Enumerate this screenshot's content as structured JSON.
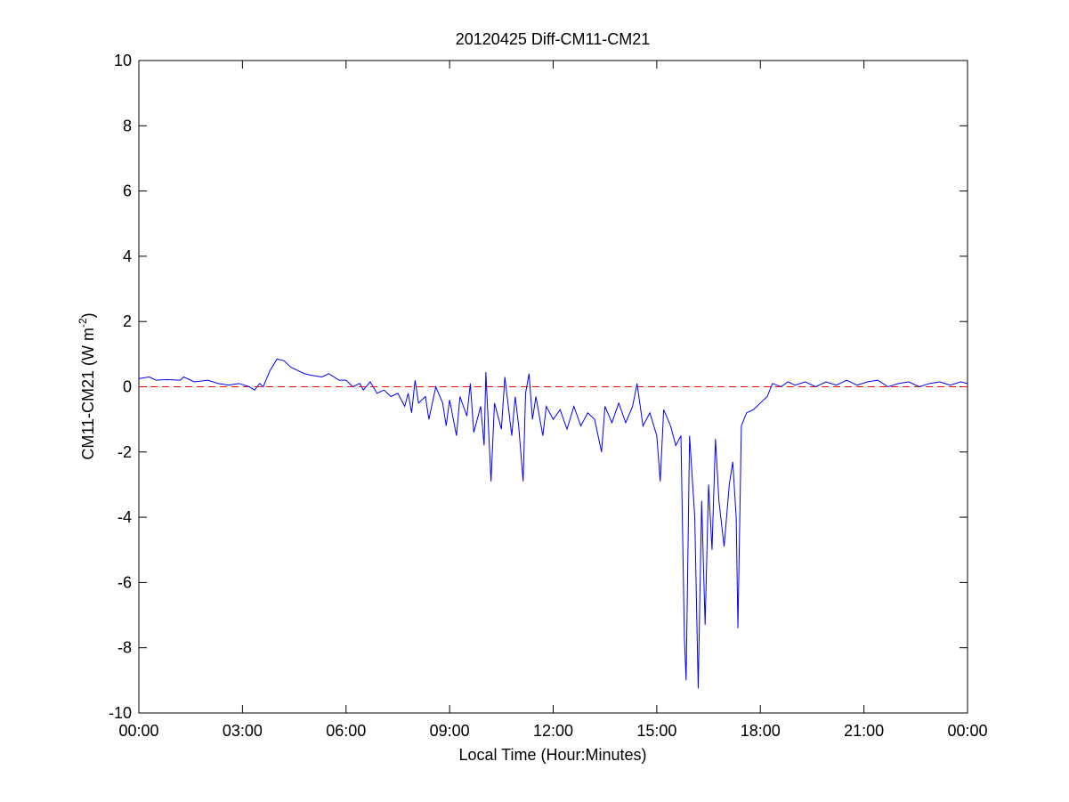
{
  "chart_data": {
    "type": "line",
    "title": "20120425 Diff-CM11-CM21",
    "xlabel": "Local Time (Hour:Minutes)",
    "ylabel": "CM11-CM21 (W m",
    "ylabel_sup": "-2",
    "ylabel_end": ")",
    "x": [
      0,
      0.3,
      0.5,
      0.8,
      1.2,
      1.3,
      1.6,
      2,
      2.3,
      2.6,
      2.9,
      3.2,
      3.35,
      3.5,
      3.6,
      3.8,
      4.0,
      4.2,
      4.4,
      4.6,
      4.8,
      5.0,
      5.3,
      5.5,
      5.8,
      6.0,
      6.2,
      6.4,
      6.5,
      6.7,
      6.9,
      7.1,
      7.3,
      7.5,
      7.7,
      7.8,
      7.9,
      8.0,
      8.1,
      8.3,
      8.4,
      8.6,
      8.8,
      8.9,
      9.0,
      9.2,
      9.3,
      9.5,
      9.6,
      9.7,
      9.9,
      10.0,
      10.05,
      10.2,
      10.3,
      10.5,
      10.6,
      10.8,
      10.9,
      11.0,
      11.13,
      11.2,
      11.3,
      11.4,
      11.5,
      11.7,
      11.8,
      12.0,
      12.2,
      12.4,
      12.6,
      12.8,
      13.0,
      13.2,
      13.4,
      13.5,
      13.7,
      13.9,
      14.1,
      14.3,
      14.43,
      14.6,
      14.8,
      15.0,
      15.1,
      15.2,
      15.4,
      15.55,
      15.7,
      15.8,
      15.85,
      15.95,
      16.1,
      16.2,
      16.3,
      16.4,
      16.5,
      16.6,
      16.7,
      16.8,
      16.95,
      17.1,
      17.2,
      17.3,
      17.35,
      17.45,
      17.6,
      17.8,
      18.0,
      18.2,
      18.35,
      18.6,
      18.8,
      19.0,
      19.3,
      19.6,
      19.9,
      20.2,
      20.5,
      20.8,
      21.1,
      21.4,
      21.7,
      22.0,
      22.3,
      22.6,
      22.9,
      23.2,
      23.5,
      23.8,
      24.0
    ],
    "series": [
      {
        "color": "#0000ff",
        "values": [
          0.25,
          0.3,
          0.2,
          0.22,
          0.2,
          0.3,
          0.15,
          0.2,
          0.1,
          0.05,
          0.1,
          0.0,
          -0.1,
          0.1,
          0.0,
          0.5,
          0.85,
          0.8,
          0.6,
          0.5,
          0.4,
          0.35,
          0.3,
          0.4,
          0.2,
          0.2,
          0.0,
          0.1,
          -0.1,
          0.15,
          -0.2,
          -0.1,
          -0.3,
          -0.2,
          -0.6,
          -0.2,
          -0.8,
          0.2,
          -0.5,
          -0.3,
          -1.0,
          0.0,
          -0.5,
          -1.2,
          -0.4,
          -1.5,
          -0.3,
          -0.9,
          0.1,
          -1.4,
          -0.6,
          -1.8,
          0.45,
          -2.9,
          -0.5,
          -1.3,
          0.3,
          -1.5,
          -0.3,
          -1.2,
          -2.9,
          -0.2,
          0.4,
          -1.0,
          -0.3,
          -1.5,
          -0.6,
          -1.0,
          -0.7,
          -1.3,
          -0.6,
          -1.2,
          -0.8,
          -1.0,
          -2.0,
          -0.6,
          -1.1,
          -0.5,
          -1.1,
          -0.6,
          0.1,
          -1.2,
          -0.8,
          -1.5,
          -2.9,
          -0.7,
          -1.2,
          -1.8,
          -1.5,
          -7.7,
          -9.0,
          -1.5,
          -4.0,
          -9.25,
          -3.5,
          -7.3,
          -3.0,
          -5.0,
          -1.6,
          -3.5,
          -4.9,
          -3.0,
          -2.3,
          -4.0,
          -7.4,
          -1.2,
          -0.8,
          -0.7,
          -0.5,
          -0.3,
          0.1,
          0.0,
          0.15,
          0.05,
          0.15,
          0.0,
          0.15,
          0.05,
          0.2,
          0.05,
          0.15,
          0.2,
          0.0,
          0.1,
          0.15,
          0.0,
          0.1,
          0.15,
          0.05,
          0.15,
          0.1
        ]
      }
    ],
    "reference_value": 0,
    "reference_color": "#ff0000",
    "xlim": [
      0,
      24
    ],
    "xticks": [
      {
        "value": 0,
        "label": "00:00"
      },
      {
        "value": 3,
        "label": "03:00"
      },
      {
        "value": 6,
        "label": "06:00"
      },
      {
        "value": 9,
        "label": "09:00"
      },
      {
        "value": 12,
        "label": "12:00"
      },
      {
        "value": 15,
        "label": "15:00"
      },
      {
        "value": 18,
        "label": "18:00"
      },
      {
        "value": 21,
        "label": "21:00"
      },
      {
        "value": 24,
        "label": "00:00"
      }
    ],
    "ylim": [
      -10,
      10
    ],
    "yticks": [
      -10,
      -8,
      -6,
      -4,
      -2,
      0,
      2,
      4,
      6,
      8,
      10
    ]
  }
}
